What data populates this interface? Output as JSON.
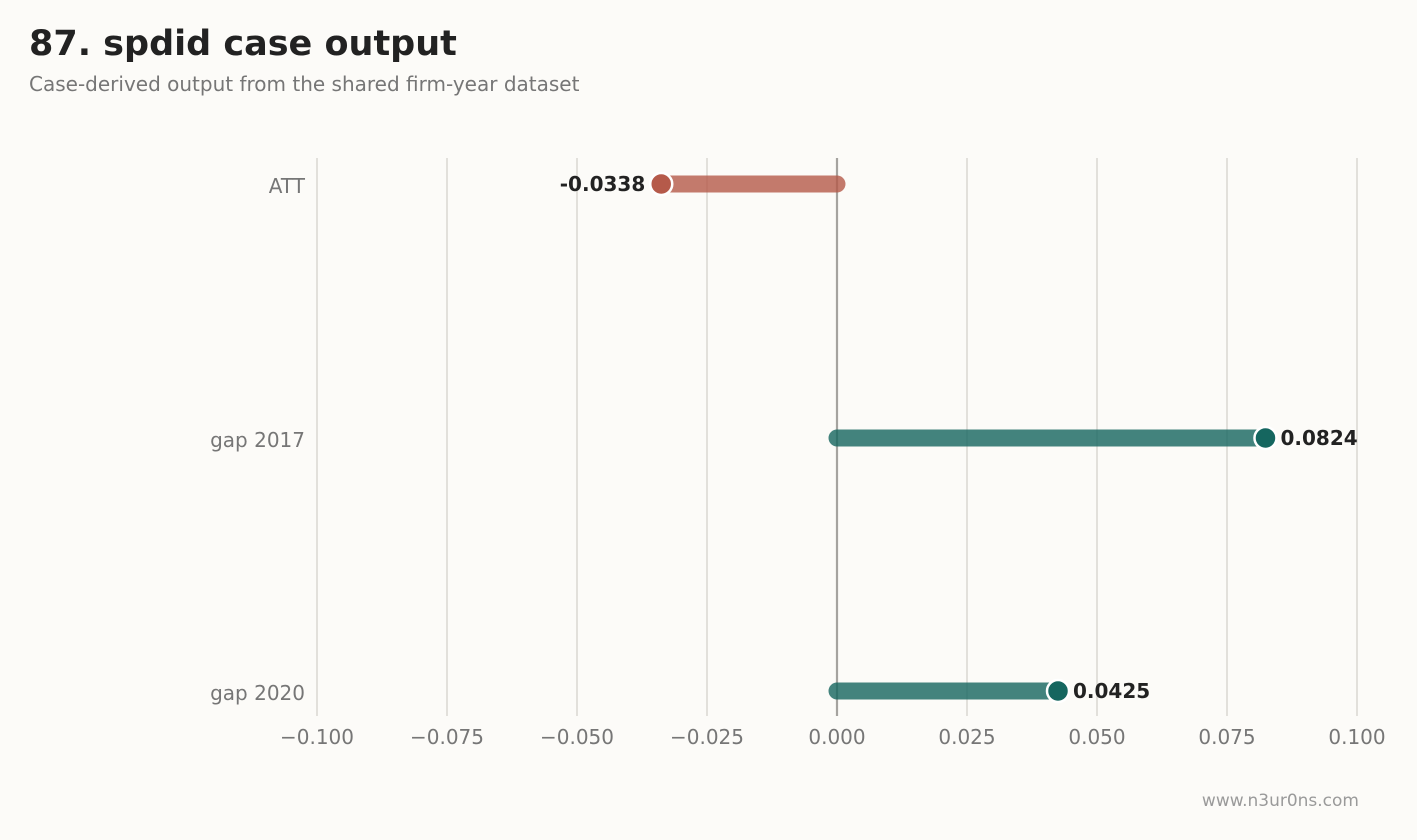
{
  "title": "87. spdid case output",
  "subtitle": "Case-derived output from the shared firm-year dataset",
  "footer": "www.n3ur0ns.com",
  "colors": {
    "negative": "#b55a4a",
    "positive": "#15665f",
    "grid": "#dcdad4",
    "zero_line": "#a5a39f",
    "text_dark": "#222222",
    "text_muted": "#767676"
  },
  "chart_data": {
    "type": "lollipop",
    "orientation": "horizontal",
    "categories": [
      "ATT",
      "gap 2017",
      "gap 2020"
    ],
    "values": [
      -0.0338,
      0.0824,
      0.0425
    ],
    "value_labels": [
      "-0.0338",
      "0.0824",
      "0.0425"
    ],
    "xlim": [
      -0.1,
      0.1
    ],
    "xticks": [
      -0.1,
      -0.075,
      -0.05,
      -0.025,
      0.0,
      0.025,
      0.05,
      0.075,
      0.1
    ],
    "xtick_labels": [
      "−0.100",
      "−0.075",
      "−0.050",
      "−0.025",
      "0.000",
      "0.025",
      "0.050",
      "0.075",
      "0.100"
    ],
    "grid": "vertical",
    "xlabel": "",
    "ylabel": ""
  }
}
